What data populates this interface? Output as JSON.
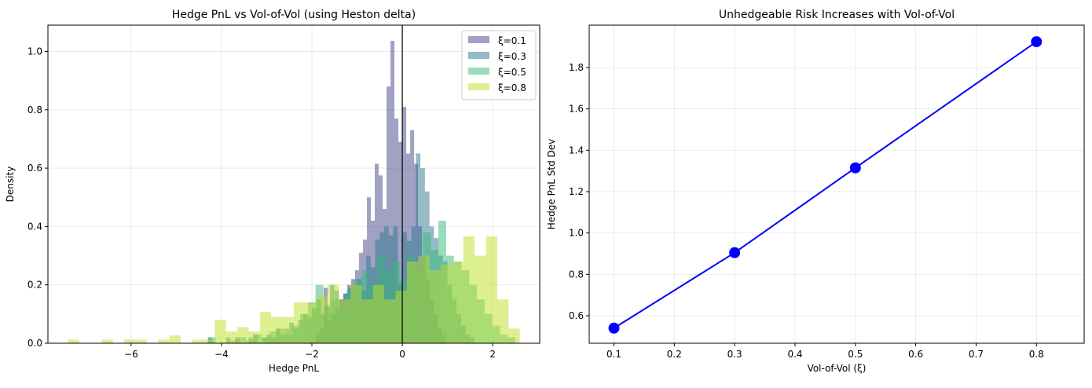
{
  "chart_data": [
    {
      "type": "histogram",
      "title": "Hedge PnL vs Vol-of-Vol (using Heston delta)",
      "xlabel": "Hedge PnL",
      "ylabel": "Density",
      "xlim": [
        -7.84,
        3.04
      ],
      "ylim": [
        0,
        1.09
      ],
      "xticks": [
        -6,
        -4,
        -2,
        0,
        2
      ],
      "yticks": [
        0.0,
        0.2,
        0.4,
        0.6,
        0.8,
        1.0
      ],
      "grid": true,
      "legend": "top-right",
      "vline": 0,
      "series": [
        {
          "name": "ξ=0.1",
          "color": "#414487",
          "start": -1.914,
          "width": 0.087,
          "values": [
            0.03,
            0.05,
            0.19,
            0.08,
            0.1,
            0.12,
            0.15,
            0.17,
            0.2,
            0.22,
            0.25,
            0.31,
            0.355,
            0.5,
            0.42,
            0.615,
            0.575,
            0.46,
            0.88,
            1.036,
            0.77,
            0.69,
            0.81,
            0.65,
            0.73,
            0.615,
            0.4,
            0.3,
            0.22,
            0.15,
            0.1,
            0.05,
            0.03
          ]
        },
        {
          "name": "ξ=0.3",
          "color": "#2a788e",
          "start": -4.3,
          "width": 0.1,
          "values": [
            0.02,
            0,
            0,
            0,
            0.02,
            0,
            0.02,
            0,
            0,
            0.02,
            0.03,
            0,
            0.02,
            0.03,
            0.02,
            0.05,
            0.03,
            0.05,
            0.07,
            0.05,
            0.08,
            0.1,
            0.09,
            0.12,
            0.15,
            0.1,
            0.13,
            0.2,
            0.18,
            0.15,
            0.17,
            0.19,
            0.2,
            0.22,
            0.18,
            0.3,
            0.26,
            0.355,
            0.38,
            0.4,
            0.37,
            0.4,
            0.2,
            0.38,
            0.35,
            0.4,
            0.65,
            0.6,
            0.52,
            0.4,
            0.36,
            0.3,
            0.28,
            0.2,
            0.15,
            0.1,
            0.06,
            0.03,
            0.02
          ]
        },
        {
          "name": "ξ=0.5",
          "color": "#35b779",
          "start": -4.3,
          "width": 0.17,
          "values": [
            0.02,
            0,
            0,
            0.01,
            0.02,
            0.01,
            0.03,
            0.02,
            0.04,
            0.05,
            0.03,
            0.06,
            0.1,
            0.14,
            0.2,
            0.12,
            0.15,
            0.12,
            0.18,
            0.22,
            0.25,
            0.2,
            0.3,
            0.25,
            0.28,
            0.22,
            0.3,
            0.25,
            0.38,
            0.32,
            0.42,
            0.3,
            0.28,
            0.25,
            0.2,
            0.15,
            0.1,
            0.06,
            0.03,
            0.02
          ]
        },
        {
          "name": "ξ=0.8",
          "color": "#bddf26",
          "start": -7.4,
          "width": 0.25,
          "values": [
            0.012,
            0,
            0,
            0.012,
            0,
            0.012,
            0.012,
            0,
            0.012,
            0.027,
            0,
            0.012,
            0.012,
            0.08,
            0.04,
            0.055,
            0.04,
            0.107,
            0.09,
            0.09,
            0.14,
            0.14,
            0.16,
            0.2,
            0.15,
            0.2,
            0.15,
            0.2,
            0.15,
            0.18,
            0.28,
            0.3,
            0.25,
            0.27,
            0.28,
            0.366,
            0.3,
            0.366,
            0.15,
            0.05
          ]
        }
      ]
    },
    {
      "type": "line",
      "title": "Unhedgeable Risk Increases with Vol-of-Vol",
      "xlabel": "Vol-of-Vol (ξ)",
      "ylabel": "Hedge PnL Std Dev",
      "xlim": [
        0.059,
        0.879
      ],
      "ylim": [
        0.467,
        2.005
      ],
      "xticks": [
        0.1,
        0.2,
        0.3,
        0.4,
        0.5,
        0.6,
        0.7,
        0.8
      ],
      "yticks": [
        0.6,
        0.8,
        1.0,
        1.2,
        1.4,
        1.6,
        1.8
      ],
      "grid": true,
      "color": "#0000ff",
      "x": [
        0.1,
        0.3,
        0.5,
        0.8
      ],
      "y": [
        0.54,
        0.905,
        1.315,
        1.925
      ]
    }
  ]
}
